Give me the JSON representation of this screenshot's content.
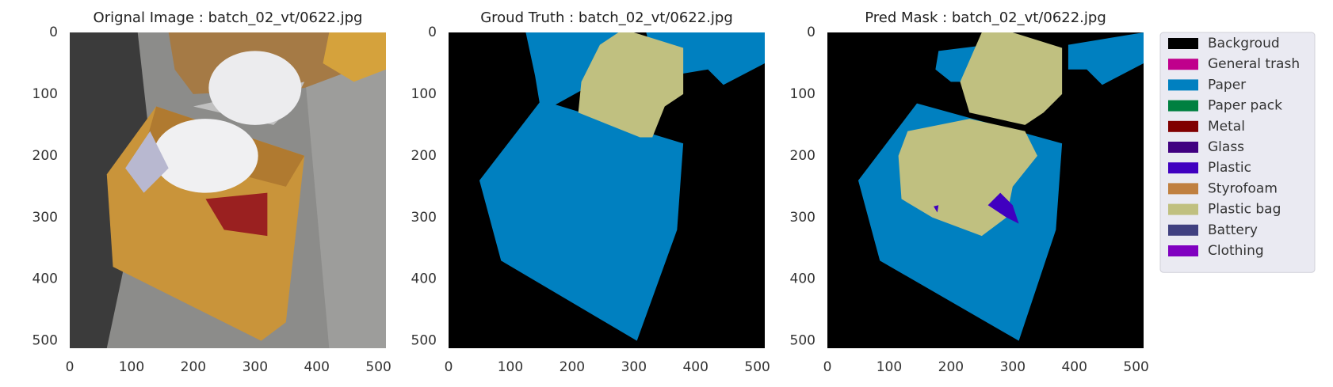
{
  "chart_data": [
    {
      "type": "image",
      "title": "Orignal Image : batch_02_vt/0622.jpg",
      "xlim": [
        0,
        512
      ],
      "ylim": [
        512,
        0
      ],
      "xticks": [
        0,
        100,
        200,
        300,
        400,
        500
      ],
      "yticks": [
        0,
        100,
        200,
        300,
        400,
        500
      ]
    },
    {
      "type": "image",
      "title": "Groud Truth : batch_02_vt/0622.jpg",
      "xlim": [
        0,
        512
      ],
      "ylim": [
        512,
        0
      ],
      "xticks": [
        0,
        100,
        200,
        300,
        400,
        500
      ],
      "yticks": [
        0,
        100,
        200,
        300,
        400,
        500
      ]
    },
    {
      "type": "image",
      "title": "Pred Mask : batch_02_vt/0622.jpg",
      "xlim": [
        0,
        512
      ],
      "ylim": [
        512,
        0
      ],
      "xticks": [
        0,
        100,
        200,
        300,
        400,
        500
      ],
      "yticks": [
        0,
        100,
        200,
        300,
        400,
        500
      ]
    }
  ],
  "legend": [
    {
      "name": "Backgroud",
      "color": "#000000"
    },
    {
      "name": "General trash",
      "color": "#c0008c"
    },
    {
      "name": "Paper",
      "color": "#0080c0"
    },
    {
      "name": "Paper pack",
      "color": "#008040"
    },
    {
      "name": "Metal",
      "color": "#800000"
    },
    {
      "name": "Glass",
      "color": "#400080"
    },
    {
      "name": "Plastic",
      "color": "#4000c0"
    },
    {
      "name": "Styrofoam",
      "color": "#c08040"
    },
    {
      "name": "Plastic bag",
      "color": "#c0c080"
    },
    {
      "name": "Battery",
      "color": "#404080"
    },
    {
      "name": "Clothing",
      "color": "#8000c0"
    }
  ]
}
